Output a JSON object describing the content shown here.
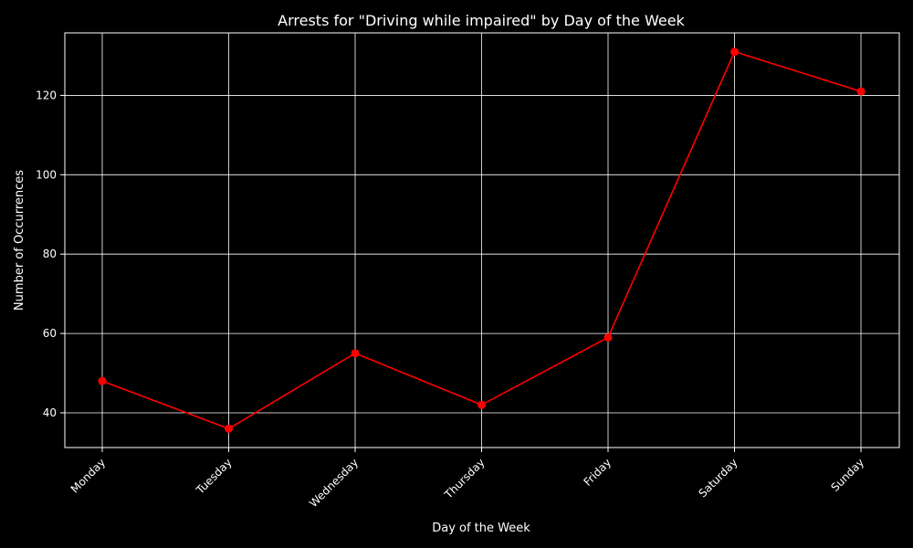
{
  "chart_data": {
    "type": "line",
    "title": "Arrests for \"Driving while impaired\" by Day of the Week",
    "xlabel": "Day of the Week",
    "ylabel": "Number of Occurrences",
    "categories": [
      "Monday",
      "Tuesday",
      "Wednesday",
      "Thursday",
      "Friday",
      "Saturday",
      "Sunday"
    ],
    "series": [
      {
        "values": [
          48,
          36,
          55,
          42,
          59,
          131,
          121
        ]
      }
    ],
    "yticks": [
      40,
      60,
      80,
      100,
      120
    ],
    "ylim": [
      31.25,
      135.75
    ],
    "grid": true,
    "colors": {
      "background": "#000000",
      "line": "#ff0000",
      "grid": "#ffffff",
      "text": "#ffffff"
    }
  }
}
